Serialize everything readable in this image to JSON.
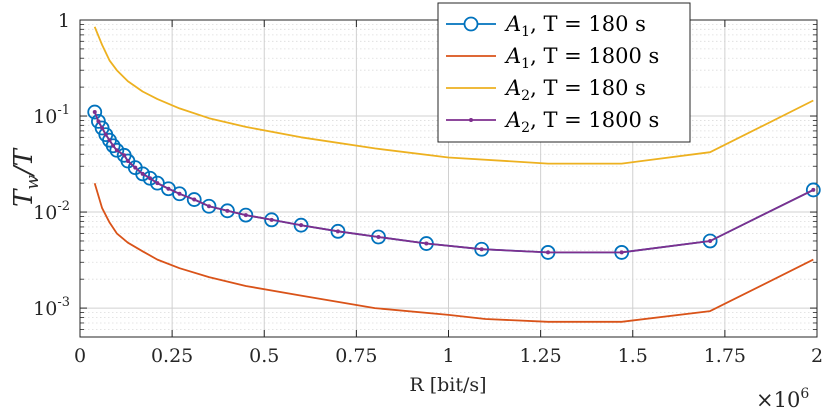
{
  "chart_data": {
    "type": "line",
    "title": "",
    "xlabel": "R [bit/s]",
    "ylabel": "T_w/T",
    "x_multiplier_label": "×10",
    "x_multiplier_exp": "6",
    "xlim": [
      0,
      2
    ],
    "ylim": [
      0.0005,
      1
    ],
    "yscale": "log",
    "grid": true,
    "legend_position": "top-right",
    "x_ticks": [
      0,
      0.25,
      0.5,
      0.75,
      1,
      1.25,
      1.5,
      1.75,
      2
    ],
    "x_tick_labels": [
      "0",
      "0.25",
      "0.5",
      "0.75",
      "1",
      "1.25",
      "1.5",
      "1.75",
      "2"
    ],
    "y_ticks": [
      0.001,
      0.01,
      0.1,
      1
    ],
    "y_tick_labels": [
      {
        "base": "10",
        "exp": "-3"
      },
      {
        "base": "10",
        "exp": "-2"
      },
      {
        "base": "10",
        "exp": "-1"
      },
      {
        "base": "1",
        "exp": ""
      }
    ],
    "series": [
      {
        "name": "A1, T = 180 s",
        "legend": {
          "script": "A",
          "sub": "1",
          "rest": ", T = 180 s"
        },
        "color": "#0072BD",
        "marker": "circle",
        "x": [
          0.04,
          0.05,
          0.06,
          0.07,
          0.08,
          0.09,
          0.1,
          0.12,
          0.13,
          0.15,
          0.17,
          0.19,
          0.21,
          0.24,
          0.27,
          0.31,
          0.35,
          0.4,
          0.45,
          0.52,
          0.6,
          0.7,
          0.81,
          0.94,
          1.09,
          1.27,
          1.47,
          1.71,
          1.99
        ],
        "y": [
          0.11,
          0.088,
          0.075,
          0.064,
          0.056,
          0.049,
          0.044,
          0.039,
          0.034,
          0.029,
          0.025,
          0.0225,
          0.02,
          0.0175,
          0.0155,
          0.0135,
          0.0115,
          0.0103,
          0.0093,
          0.0083,
          0.0073,
          0.0063,
          0.0055,
          0.0047,
          0.0041,
          0.0038,
          0.0038,
          0.005,
          0.017
        ]
      },
      {
        "name": "A1, T = 1800 s",
        "legend": {
          "script": "A",
          "sub": "1",
          "rest": ", T = 1800 s"
        },
        "color": "#D95319",
        "marker": "none",
        "x": [
          0.04,
          0.06,
          0.08,
          0.1,
          0.13,
          0.17,
          0.21,
          0.27,
          0.35,
          0.45,
          0.6,
          0.8,
          1.0,
          1.1,
          1.27,
          1.47,
          1.71,
          1.99
        ],
        "y": [
          0.02,
          0.011,
          0.0078,
          0.006,
          0.0048,
          0.0039,
          0.0032,
          0.0026,
          0.0021,
          0.0017,
          0.00135,
          0.001,
          0.00085,
          0.00077,
          0.00072,
          0.00072,
          0.00093,
          0.0032
        ]
      },
      {
        "name": "A2, T = 180 s",
        "legend": {
          "script": "A",
          "sub": "2",
          "rest": ", T = 180 s"
        },
        "color": "#EDB120",
        "marker": "none",
        "x": [
          0.04,
          0.06,
          0.08,
          0.1,
          0.13,
          0.17,
          0.21,
          0.27,
          0.35,
          0.45,
          0.6,
          0.8,
          1.0,
          1.27,
          1.47,
          1.71,
          1.99
        ],
        "y": [
          0.85,
          0.55,
          0.38,
          0.3,
          0.23,
          0.18,
          0.15,
          0.12,
          0.095,
          0.077,
          0.06,
          0.046,
          0.037,
          0.032,
          0.032,
          0.042,
          0.145
        ]
      },
      {
        "name": "A2, T = 1800 s",
        "legend": {
          "script": "A",
          "sub": "2",
          "rest": ", T = 1800 s"
        },
        "color": "#7E2F8E",
        "marker": "dot",
        "x": [
          0.04,
          0.05,
          0.06,
          0.07,
          0.08,
          0.09,
          0.1,
          0.12,
          0.13,
          0.15,
          0.17,
          0.19,
          0.21,
          0.24,
          0.27,
          0.31,
          0.35,
          0.4,
          0.45,
          0.52,
          0.6,
          0.7,
          0.81,
          0.94,
          1.09,
          1.27,
          1.47,
          1.71,
          1.99
        ],
        "y": [
          0.11,
          0.088,
          0.075,
          0.064,
          0.056,
          0.049,
          0.044,
          0.039,
          0.034,
          0.029,
          0.025,
          0.0225,
          0.02,
          0.0175,
          0.0155,
          0.0135,
          0.0115,
          0.0103,
          0.0093,
          0.0083,
          0.0073,
          0.0063,
          0.0055,
          0.0047,
          0.0041,
          0.0038,
          0.0038,
          0.005,
          0.017
        ]
      }
    ]
  }
}
